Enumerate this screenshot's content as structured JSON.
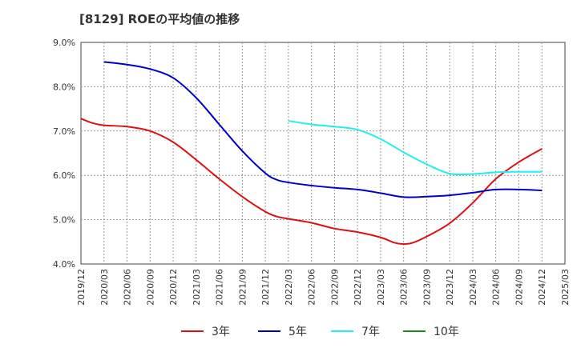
{
  "chart_data": {
    "type": "line",
    "title": "[8129]  ROEの平均値の推移",
    "xlabel": "",
    "ylabel": "",
    "ylim": [
      4.0,
      9.0
    ],
    "grid": true,
    "legend_position": "bottom",
    "y_ticks": [
      "4.0%",
      "5.0%",
      "6.0%",
      "7.0%",
      "8.0%",
      "9.0%"
    ],
    "x_ticks": [
      "2019/12",
      "2020/03",
      "2020/06",
      "2020/09",
      "2020/12",
      "2021/03",
      "2021/06",
      "2021/09",
      "2021/12",
      "2022/03",
      "2022/06",
      "2022/09",
      "2022/12",
      "2023/03",
      "2023/06",
      "2023/09",
      "2023/12",
      "2024/03",
      "2024/06",
      "2024/09",
      "2024/12",
      "2025/03"
    ],
    "series": [
      {
        "name": "3年",
        "color": "#dd1111",
        "points": [
          [
            0,
            7.28
          ],
          [
            0.5,
            7.18
          ],
          [
            1,
            7.13
          ],
          [
            2,
            7.1
          ],
          [
            3,
            7.0
          ],
          [
            4,
            6.75
          ],
          [
            5,
            6.35
          ],
          [
            6,
            5.92
          ],
          [
            7,
            5.52
          ],
          [
            8,
            5.18
          ],
          [
            8.5,
            5.07
          ],
          [
            9,
            5.02
          ],
          [
            10,
            4.93
          ],
          [
            11,
            4.8
          ],
          [
            12,
            4.72
          ],
          [
            13,
            4.6
          ],
          [
            13.6,
            4.48
          ],
          [
            14,
            4.45
          ],
          [
            14.4,
            4.48
          ],
          [
            15,
            4.62
          ],
          [
            16,
            4.92
          ],
          [
            17,
            5.38
          ],
          [
            18,
            5.92
          ],
          [
            19,
            6.3
          ],
          [
            20,
            6.6
          ]
        ]
      },
      {
        "name": "5年",
        "color": "#0000cc",
        "points": [
          [
            1,
            8.56
          ],
          [
            2,
            8.5
          ],
          [
            3,
            8.4
          ],
          [
            4,
            8.2
          ],
          [
            5,
            7.75
          ],
          [
            6,
            7.15
          ],
          [
            7,
            6.55
          ],
          [
            8,
            6.05
          ],
          [
            8.5,
            5.9
          ],
          [
            9,
            5.84
          ],
          [
            10,
            5.77
          ],
          [
            11,
            5.72
          ],
          [
            12,
            5.68
          ],
          [
            13,
            5.6
          ],
          [
            14,
            5.51
          ],
          [
            15,
            5.52
          ],
          [
            16,
            5.55
          ],
          [
            17,
            5.61
          ],
          [
            18,
            5.68
          ],
          [
            19,
            5.68
          ],
          [
            20,
            5.66
          ]
        ]
      },
      {
        "name": "7年",
        "color": "#22eeee",
        "points": [
          [
            9,
            7.23
          ],
          [
            10,
            7.15
          ],
          [
            11,
            7.1
          ],
          [
            12,
            7.03
          ],
          [
            13,
            6.82
          ],
          [
            14,
            6.52
          ],
          [
            15,
            6.25
          ],
          [
            16,
            6.04
          ],
          [
            17,
            6.03
          ],
          [
            18,
            6.07
          ],
          [
            19,
            6.08
          ],
          [
            20,
            6.08
          ]
        ]
      },
      {
        "name": "10年",
        "color": "#228822",
        "points": []
      }
    ]
  }
}
